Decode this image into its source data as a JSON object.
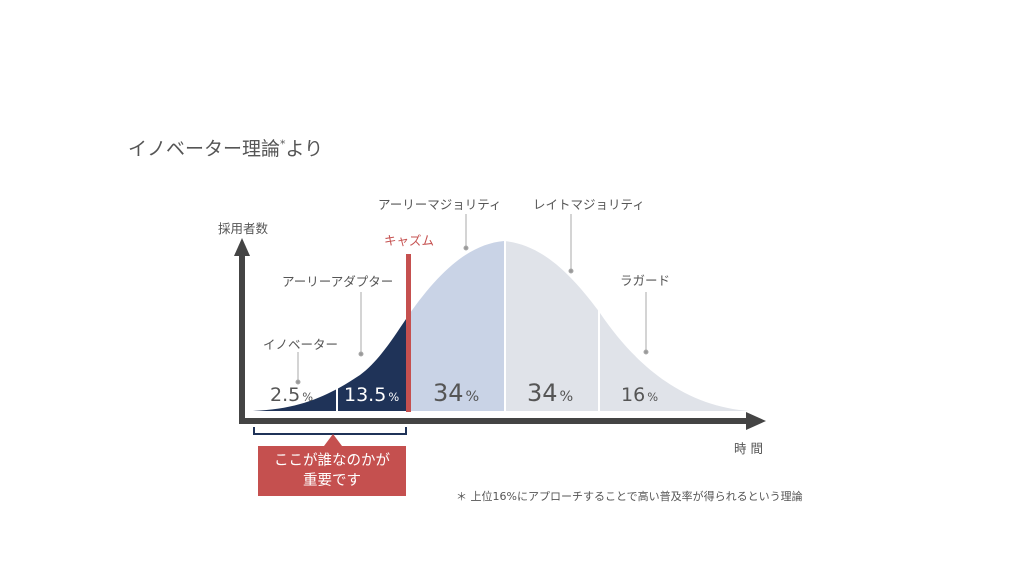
{
  "title": "イノベーター理論",
  "title_mark": "*",
  "title_suffix": "より",
  "axes": {
    "y_label": "採用者数",
    "x_label": "時 間"
  },
  "chasm": {
    "label": "キャズム",
    "color": "#c5504f"
  },
  "segments": [
    {
      "name": "イノベーター",
      "value": "2.5",
      "unit": "%",
      "color": "#ffffff"
    },
    {
      "name": "アーリーアダプター",
      "value": "13.5",
      "unit": "%",
      "color": "#1f3358"
    },
    {
      "name": "アーリーマジョリティ",
      "value": "34",
      "unit": "%",
      "color": "#c9d3e6"
    },
    {
      "name": "レイトマジョリティ",
      "value": "34",
      "unit": "%",
      "color": "#e0e3e9"
    },
    {
      "name": "ラガード",
      "value": "16",
      "unit": "%",
      "color": "#e0e3e9"
    }
  ],
  "callout": {
    "line1": "ここが誰なのかが",
    "line2": "重要です"
  },
  "footnote": "＊ 上位16%にアプローチすることで高い普及率が得られるという理論"
}
